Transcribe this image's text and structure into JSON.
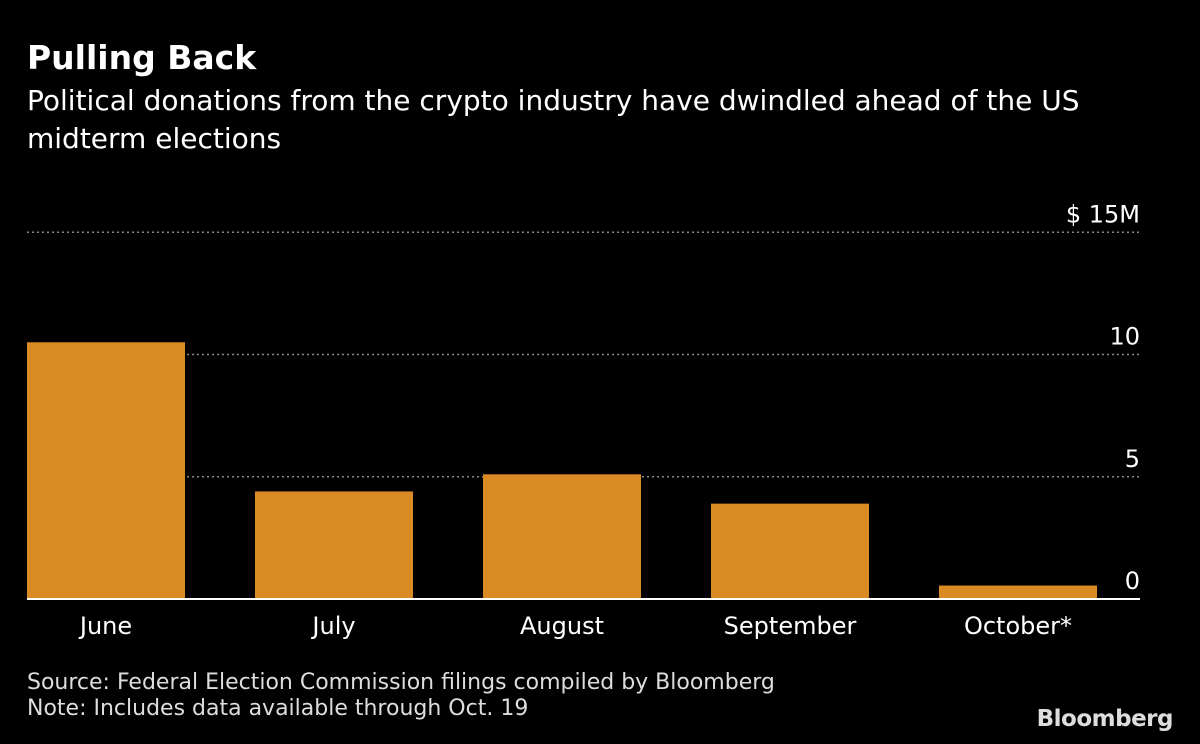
{
  "chart_data": {
    "type": "bar",
    "title": "Pulling Back",
    "subtitle": "Political donations from the crypto industry have dwindled ahead of the US midterm elections",
    "categories": [
      "June",
      "July",
      "August",
      "September",
      "October*"
    ],
    "values": [
      10.5,
      4.4,
      5.1,
      3.9,
      0.55
    ],
    "ylabel": "",
    "xlabel": "",
    "unit": "$M",
    "ylim": [
      0,
      15
    ],
    "yticks": [
      0,
      5,
      10,
      15
    ],
    "ytick_labels": [
      "0",
      "5",
      "10",
      "$ 15M"
    ],
    "grid": true,
    "bar_color": "#DA8A23"
  },
  "footer": {
    "source": "Source: Federal Election Commission filings compiled by Bloomberg",
    "note": "Note: Includes data available through Oct. 19",
    "logo": "Bloomberg"
  }
}
